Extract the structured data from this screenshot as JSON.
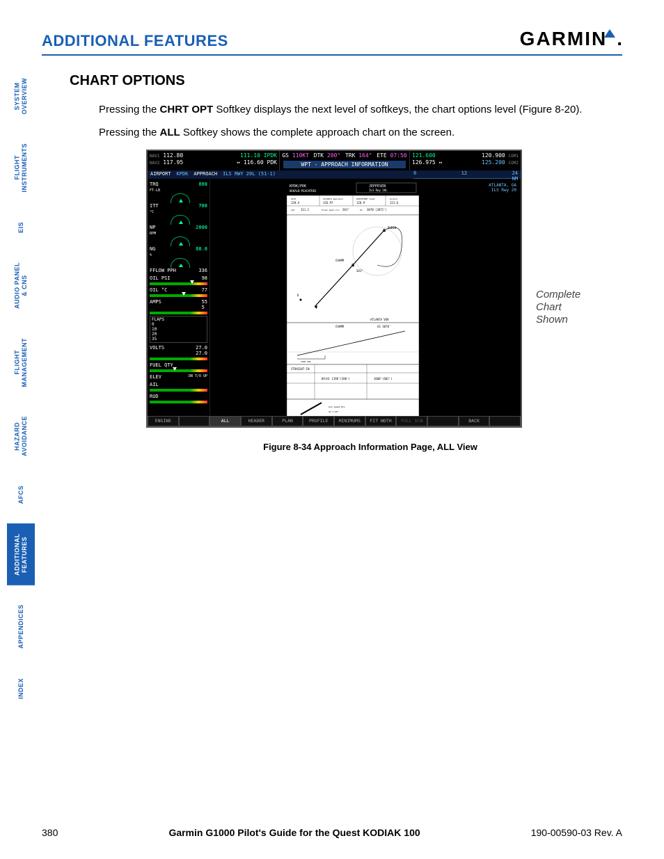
{
  "header": {
    "section_title": "ADDITIONAL FEATURES",
    "logo_text": "GARMIN",
    "logo_color": "#000",
    "accent": "#1a5fb4"
  },
  "sidebar": {
    "tabs": [
      {
        "label": "SYSTEM\nOVERVIEW",
        "active": false
      },
      {
        "label": "FLIGHT\nINSTRUMENTS",
        "active": false
      },
      {
        "label": "EIS",
        "active": false
      },
      {
        "label": "AUDIO PANEL\n& CNS",
        "active": false
      },
      {
        "label": "FLIGHT\nMANAGEMENT",
        "active": false
      },
      {
        "label": "HAZARD\nAVOIDANCE",
        "active": false
      },
      {
        "label": "AFCS",
        "active": false
      },
      {
        "label": "ADDITIONAL\nFEATURES",
        "active": true
      },
      {
        "label": "APPENDICES",
        "active": false
      },
      {
        "label": "INDEX",
        "active": false
      }
    ]
  },
  "body": {
    "h2": "CHART OPTIONS",
    "para1_pre": "Pressing the ",
    "para1_b": "CHRT OPT",
    "para1_post": " Softkey displays the next level of softkeys, the chart options level (Figure 8-20).",
    "para2_pre": "Pressing the ",
    "para2_b": "ALL",
    "para2_post": " Softkey shows the complete approach chart on the screen."
  },
  "g1000": {
    "nav1_standby": "112.80",
    "nav1_active": "111.10",
    "nav1_id": "IPDK",
    "nav2_standby": "117.95",
    "nav2_active": "116.60",
    "nav2_id": "PDK",
    "gs": "GS",
    "gs_val": "110KT",
    "dtk": "DTK",
    "dtk_val": "200°",
    "trk": "TRK",
    "trk_val": "164°",
    "ete": "ETE",
    "ete_val": "07:50",
    "com1_active": "121.600",
    "com1_standby": "120.900",
    "com1_lbl": "COM1",
    "com2_active": "126.975",
    "com2_standby": "125.200",
    "com2_lbl": "COM2",
    "page_title": "WPT - APPROACH INFORMATION",
    "sub_airport_lbl": "AIRPORT",
    "sub_airport": "KPDK",
    "sub_appr_lbl": "APPROACH",
    "sub_appr": "ILS RWY 20L (51-1)",
    "scale_0": "0",
    "scale_12": "12",
    "scale_24": "24",
    "scale_unit": "NM",
    "atl_city": "ATLANTA, GA",
    "atl_rwy": "ILS Rwy 20",
    "eis": {
      "trq_lbl": "TRQ",
      "trq_unit": "FT-LB",
      "trq": "880",
      "itt_lbl": "ITT",
      "itt_unit": "°C",
      "itt": "700",
      "np_lbl": "NP",
      "np_unit": "RPM",
      "np": "2000",
      "ng_lbl": "NG",
      "ng_unit": "%",
      "ng": "80.0",
      "fflow_lbl": "FFLOW PPH",
      "fflow": "336",
      "oilpsi_lbl": "OIL PSI",
      "oilpsi": "98",
      "oilc_lbl": "OIL °C",
      "oilc": "77",
      "amps_lbl": "AMPS",
      "amps1": "55",
      "amps2": "5",
      "volts_lbl": "VOLTS",
      "volts1": "27.0",
      "volts2": "27.0",
      "fuelqty_lbl": "FUEL QTY",
      "ail_lbl": "AIL",
      "rud_lbl": "RUD",
      "flaps_lbl": "FLAPS",
      "flaps_0": "0",
      "flaps_10": "10",
      "flaps_20": "20",
      "flaps_35": "35",
      "elev_lbl": "ELEV",
      "elev_dn": "DN",
      "elev_to": "T/O",
      "elev_up": "UP"
    },
    "softkeys": [
      "ENGINE",
      "",
      "ALL",
      "HEADER",
      "PLAN",
      "PROFILE",
      "MINIMUMS",
      "FIT WDTH",
      "FULL SCN",
      "",
      "BACK",
      ""
    ],
    "softkey_on_idx": 2,
    "softkey_dim_idx": 8,
    "colors": {
      "green": "#00dd88",
      "cyan": "#70c0ff",
      "magenta": "#ff60ff",
      "bg": "#000000",
      "titlebar": "#1a3a6a"
    }
  },
  "annotation": "Complete\nChart\nShown",
  "figure_caption": "Figure 8-34  Approach Information Page, ALL View",
  "footer": {
    "page": "380",
    "title": "Garmin G1000 Pilot's Guide for the Quest KODIAK 100",
    "rev": "190-00590-03  Rev. A"
  }
}
